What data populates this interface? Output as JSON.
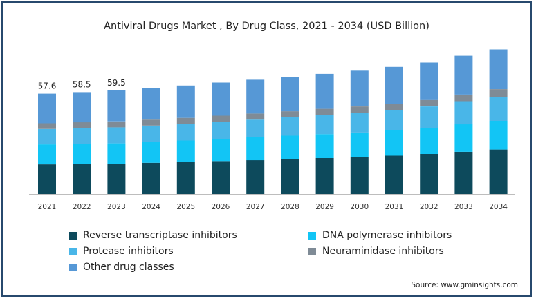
{
  "chart_data": {
    "type": "bar",
    "stacked": true,
    "title": "Antiviral Drugs Market , By Drug Class, 2021 - 2034 (USD Billion)",
    "categories": [
      "2021",
      "2022",
      "2023",
      "2024",
      "2025",
      "2026",
      "2027",
      "2028",
      "2029",
      "2030",
      "2031",
      "2032",
      "2033",
      "2034"
    ],
    "ylim": [
      0,
      84
    ],
    "grid": false,
    "legend_position": "bottom",
    "series": [
      {
        "name": "Reverse transcriptase inhibitors",
        "color": "#0d4a5c",
        "values": [
          17.0,
          17.3,
          17.4,
          17.9,
          18.4,
          18.9,
          19.4,
          20.0,
          20.6,
          21.2,
          22.0,
          23.0,
          24.2,
          25.5
        ]
      },
      {
        "name": "DNA polymerase inhibitors",
        "color": "#12c5f5",
        "values": [
          11.5,
          11.6,
          11.7,
          12.0,
          12.3,
          12.7,
          13.1,
          13.5,
          13.8,
          14.1,
          14.5,
          15.0,
          15.8,
          16.5
        ]
      },
      {
        "name": "Protease inhibitors",
        "color": "#49b6e8",
        "values": [
          8.8,
          9.0,
          9.2,
          9.4,
          9.6,
          9.9,
          10.2,
          10.5,
          10.9,
          11.4,
          11.8,
          12.3,
          12.9,
          13.6
        ]
      },
      {
        "name": "Neuraminidase inhibitors",
        "color": "#7f8b96",
        "values": [
          3.3,
          3.3,
          3.4,
          3.4,
          3.4,
          3.5,
          3.5,
          3.5,
          3.6,
          3.6,
          3.6,
          3.7,
          4.2,
          4.6
        ]
      },
      {
        "name": "Other drug classes",
        "color": "#5698d6",
        "values": [
          17.0,
          17.3,
          17.8,
          18.2,
          18.6,
          19.0,
          19.4,
          19.8,
          20.1,
          20.5,
          21.1,
          21.5,
          22.3,
          22.8
        ]
      }
    ],
    "data_labels": [
      "57.6",
      "58.5",
      "59.5"
    ]
  },
  "legend": [
    {
      "label": "Reverse transcriptase inhibitors",
      "color": "#0d4a5c"
    },
    {
      "label": "DNA polymerase inhibitors",
      "color": "#12c5f5"
    },
    {
      "label": "Protease inhibitors",
      "color": "#49b6e8"
    },
    {
      "label": "Neuraminidase inhibitors",
      "color": "#7f8b96"
    },
    {
      "label": "Other drug classes",
      "color": "#5698d6"
    }
  ],
  "source": "Source: www.gminsights.com"
}
